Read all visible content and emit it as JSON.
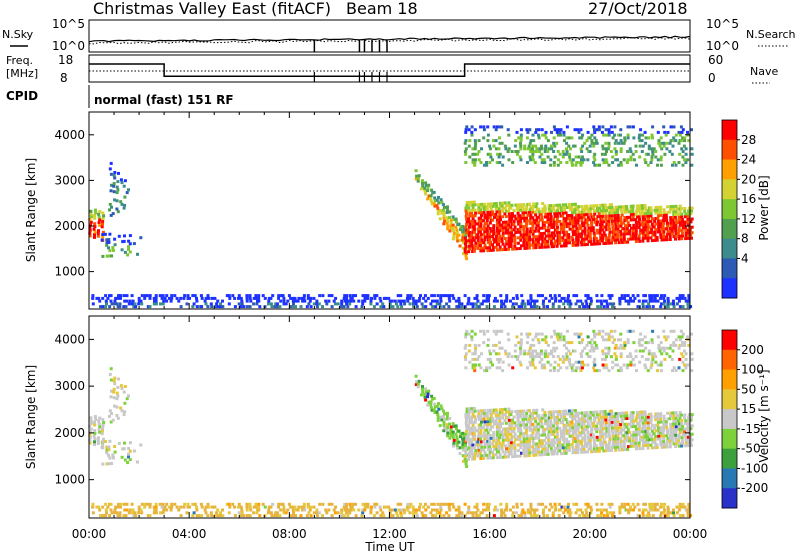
{
  "header": {
    "station": "Christmas Valley East (fitACF)",
    "beam": "Beam 18",
    "date": "27/Oct/2018"
  },
  "panels": {
    "nsky_label": "N.Sky",
    "nsearch_label": "N.Search",
    "nsky_ticks": [
      "10^5",
      "10^0"
    ],
    "freq_label_line1": "Freq.",
    "freq_label_line2": "[MHz]",
    "freq_ticks": [
      "18",
      "8"
    ],
    "nave_label": "Nave",
    "nave_ticks": [
      "60",
      "0"
    ],
    "cpid_label": "CPID",
    "cpid_value": "normal (fast) 151 RF"
  },
  "colors": {
    "power": [
      "#1e32ff",
      "#2c5ab4",
      "#3c8c8c",
      "#50a050",
      "#7dc832",
      "#d2d232",
      "#ffa000",
      "#ff5000",
      "#ff0000"
    ],
    "velocity": [
      "#2832c8",
      "#2878b4",
      "#3ca03c",
      "#7dd23c",
      "#c8c8c8",
      "#e6c83c",
      "#ffa000",
      "#ff6400",
      "#ff0000"
    ],
    "ground": "#e6b43c"
  },
  "chart_data": [
    {
      "type": "heatmap",
      "name": "power",
      "xlabel": "Time UT",
      "ylabel": "Slant Range [km]",
      "x_ticks": [
        "00:00",
        "04:00",
        "08:00",
        "12:00",
        "16:00",
        "20:00",
        "00:00"
      ],
      "x_range_hours": [
        0,
        24
      ],
      "y_range_km": [
        180,
        4500
      ],
      "y_ticks": [
        1000,
        2000,
        3000,
        4000
      ],
      "colorbar_label": "Power [dB]",
      "colorbar_ticks": [
        "28",
        "24",
        "20",
        "16",
        "12",
        "8",
        "4"
      ],
      "colorbar_range": [
        0,
        32
      ]
    },
    {
      "type": "heatmap",
      "name": "velocity",
      "xlabel": "Time UT",
      "ylabel": "Slant Range [km]",
      "x_ticks": [
        "00:00",
        "04:00",
        "08:00",
        "12:00",
        "16:00",
        "20:00",
        "00:00"
      ],
      "x_range_hours": [
        0,
        24
      ],
      "y_range_km": [
        180,
        4500
      ],
      "y_ticks": [
        1000,
        2000,
        3000,
        4000
      ],
      "colorbar_label": "Velocity [m s⁻¹]",
      "colorbar_ticks": [
        "200",
        "100",
        "50",
        "15",
        "-15",
        "-50",
        "-100",
        "-200"
      ]
    }
  ]
}
